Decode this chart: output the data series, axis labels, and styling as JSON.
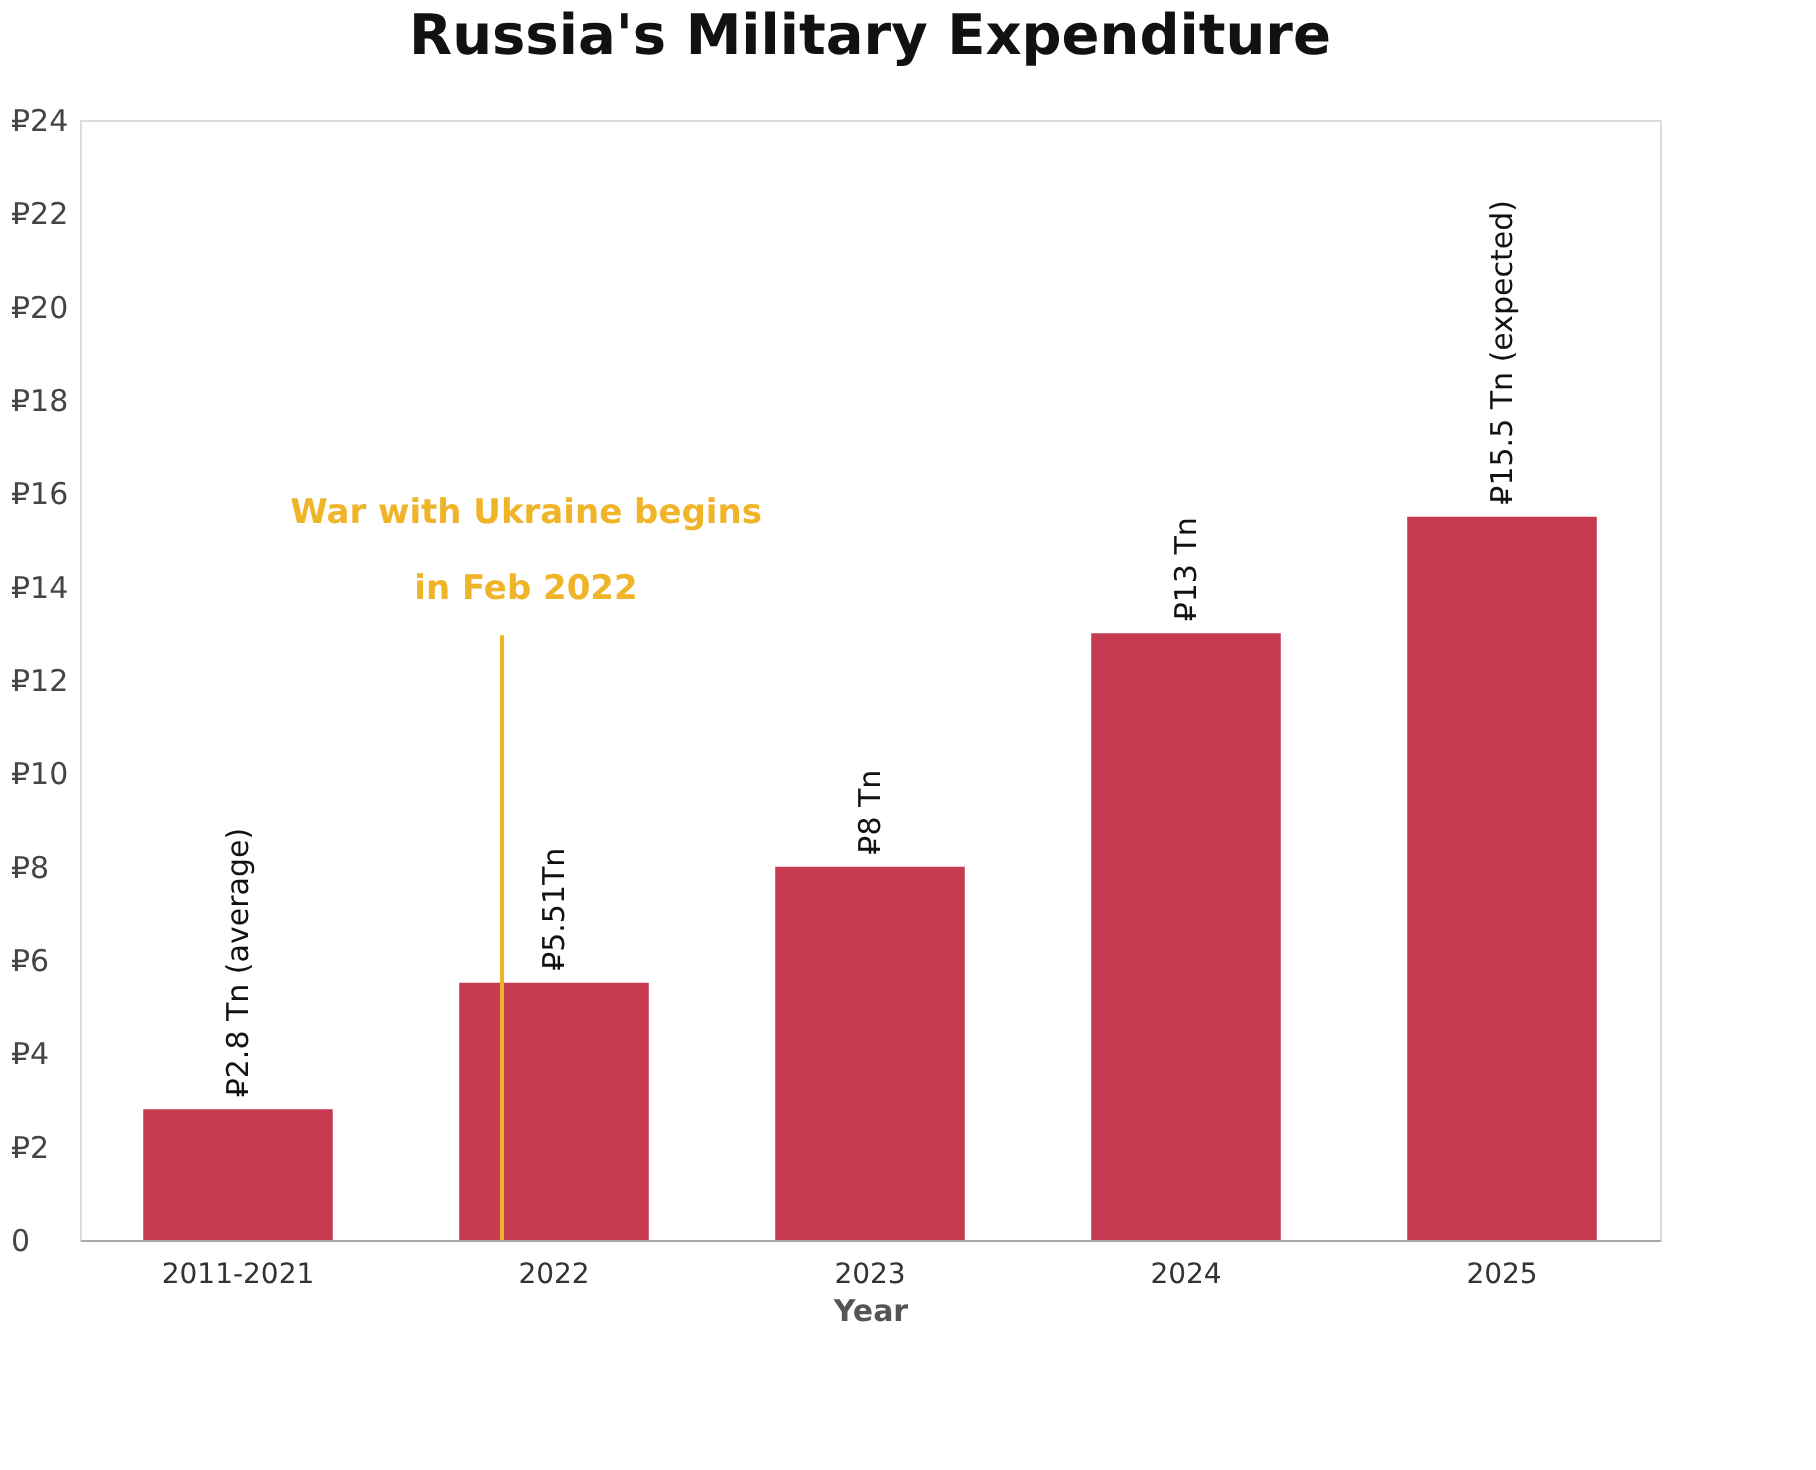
{
  "chart_data": {
    "type": "bar",
    "title": "Russia's Military Expenditure",
    "xlabel": "Year",
    "categories": [
      "2011-2021",
      "2022",
      "2023",
      "2024",
      "2025"
    ],
    "values": [
      2.8,
      5.51,
      8,
      13,
      15.5
    ],
    "value_labels": [
      "₽2.8 Tn (average)",
      "₽5.51Tn",
      "₽8 Tn",
      "₽13 Tn",
      "₽15.5 Tn (expected)"
    ],
    "color": "#c63a52",
    "ylim": [
      0,
      24
    ],
    "yticks": [
      0,
      {
        "value": 2,
        "label": "₽2"
      },
      {
        "value": 4,
        "label": "₽4"
      },
      {
        "value": 6,
        "label": "₽6"
      },
      {
        "value": 8,
        "label": "₽8"
      },
      {
        "value": 10,
        "label": "₽10"
      },
      {
        "value": 12,
        "label": "₽12"
      },
      {
        "value": 14,
        "label": "₽14"
      },
      {
        "value": 16,
        "label": "₽16"
      },
      {
        "value": 18,
        "label": "₽18"
      },
      {
        "value": 20,
        "label": "₽20"
      },
      {
        "value": 22,
        "label": "₽22"
      },
      {
        "value": 24,
        "label": "₽24"
      }
    ],
    "grid": false,
    "ref_lines": [
      {
        "axis": "x",
        "value": "2022",
        "label": "War with Ukraine begins in Feb 2022",
        "color": "#f0b429"
      }
    ]
  }
}
